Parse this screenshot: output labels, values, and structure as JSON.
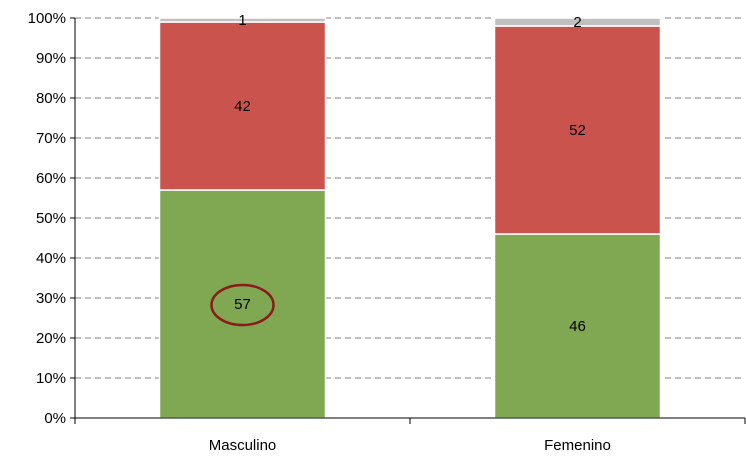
{
  "chart_data": {
    "type": "bar",
    "stacked": true,
    "percent_stacked": true,
    "categories": [
      "Masculino",
      "Femenino"
    ],
    "series": [
      {
        "values": [
          57,
          46
        ],
        "color": "#80A852"
      },
      {
        "values": [
          42,
          52
        ],
        "color": "#CB534D"
      },
      {
        "values": [
          1,
          2
        ],
        "color": "#C0C0C0"
      }
    ],
    "y_ticks": [
      "0%",
      "10%",
      "20%",
      "30%",
      "40%",
      "50%",
      "60%",
      "70%",
      "80%",
      "90%",
      "100%"
    ],
    "ylim": [
      0,
      100
    ],
    "grid": true,
    "legend": "none",
    "annotations": [
      {
        "type": "circle",
        "category": "Masculino",
        "value": 57,
        "color": "#8B1A1A"
      }
    ]
  }
}
